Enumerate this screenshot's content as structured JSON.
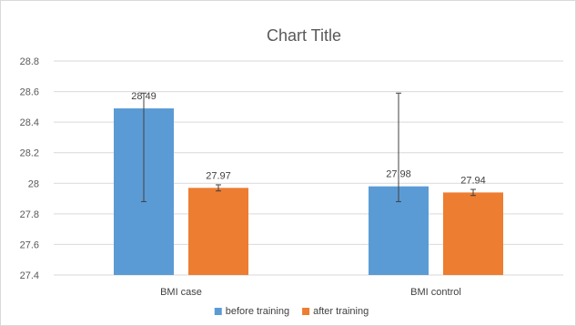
{
  "chart_data": {
    "type": "bar",
    "title": "Chart Title",
    "xlabel": "",
    "ylabel": "",
    "categories": [
      "BMI case",
      "BMI control"
    ],
    "series": [
      {
        "name": "before training",
        "color": "#5b9bd5",
        "values": [
          28.49,
          27.98
        ],
        "labels": [
          "28.49",
          "27.98"
        ],
        "error_low": [
          27.88,
          27.88
        ],
        "error_high": [
          28.59,
          28.59
        ]
      },
      {
        "name": "after training",
        "color": "#ed7d31",
        "values": [
          27.97,
          27.94
        ],
        "labels": [
          "27.97",
          "27.94"
        ],
        "error_low": [
          27.95,
          27.92
        ],
        "error_high": [
          27.99,
          27.96
        ]
      }
    ],
    "ylim": [
      27.4,
      28.8
    ],
    "yticks": [
      27.4,
      27.6,
      27.8,
      28,
      28.2,
      28.4,
      28.6,
      28.8
    ],
    "ytick_labels": [
      "27.4",
      "27.6",
      "27.8",
      "28",
      "28.2",
      "28.4",
      "28.6",
      "28.8"
    ],
    "grid": true,
    "legend_position": "bottom",
    "error_bars": true
  }
}
